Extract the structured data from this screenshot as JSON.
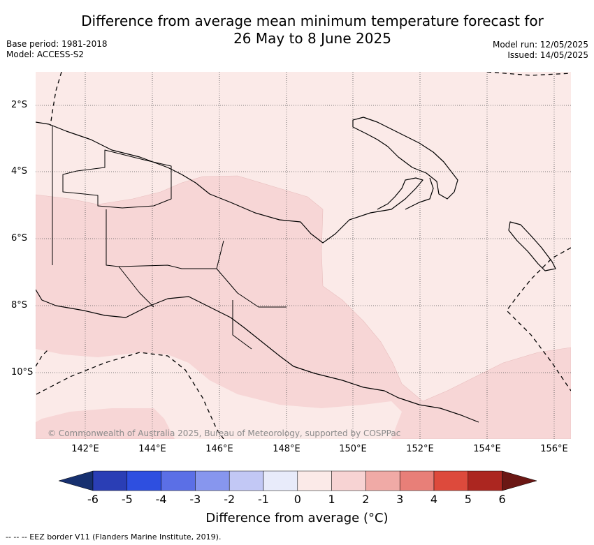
{
  "title_line1": "Difference from average mean minimum temperature forecast for",
  "title_line2": "26 May to 8 June 2025",
  "base_period": "Base period: 1981-2018",
  "model": "Model: ACCESS-S2",
  "model_run": "Model run: 12/05/2025",
  "issued": "Issued: 14/05/2025",
  "lon_ticks": [
    "142°E",
    "144°E",
    "146°E",
    "148°E",
    "150°E",
    "152°E",
    "154°E",
    "156°E"
  ],
  "lat_ticks": [
    "2°S",
    "4°S",
    "6°S",
    "8°S",
    "10°S"
  ],
  "copyright": "© Commonwealth of Australia 2025, Bureau of Meteorology, supported by COSPPac",
  "colorbar": {
    "labels": [
      "-6",
      "-5",
      "-4",
      "-3",
      "-2",
      "-1",
      "0",
      "1",
      "2",
      "3",
      "4",
      "5",
      "6"
    ],
    "colors": [
      "#17306f",
      "#2a3eb5",
      "#2e4fe0",
      "#5b6fe6",
      "#8796ee",
      "#c2c8f5",
      "#e8ebfa",
      "#fbeae8",
      "#f7d3d3",
      "#f0aaa6",
      "#e87f78",
      "#dd4a3c",
      "#ac2620",
      "#6b1714"
    ],
    "title": "Difference from average (°C)"
  },
  "footnote": "--  --  -- EEZ border V11 (Flanders Marine Institute, 2019)."
}
